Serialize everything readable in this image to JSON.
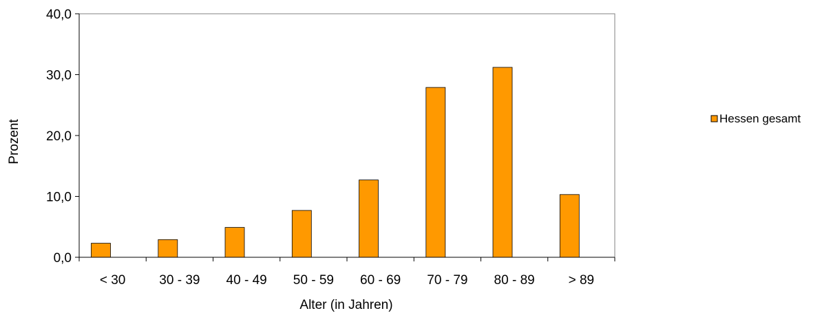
{
  "chart_data": {
    "type": "bar",
    "title": "",
    "xlabel": "Alter (in Jahren)",
    "ylabel": "Prozent",
    "categories": [
      "< 30",
      "30 - 39",
      "40 - 49",
      "50 - 59",
      "60 - 69",
      "70 - 79",
      "80 - 89",
      "> 89"
    ],
    "series": [
      {
        "name": "Hessen gesamt",
        "values": [
          2.3,
          2.9,
          4.9,
          7.7,
          12.7,
          27.9,
          31.2,
          10.3
        ]
      }
    ],
    "ylim": [
      0,
      40
    ],
    "yticks": [
      "0,0",
      "10,0",
      "20,0",
      "30,0",
      "40,0"
    ],
    "ytick_values": [
      0,
      10,
      20,
      30,
      40
    ],
    "grid": false,
    "legend_position": "right",
    "colors": {
      "bar_fill": "#FF9900",
      "bar_stroke": "#000000",
      "axis": "#000000",
      "plot_border": "#808080"
    }
  }
}
